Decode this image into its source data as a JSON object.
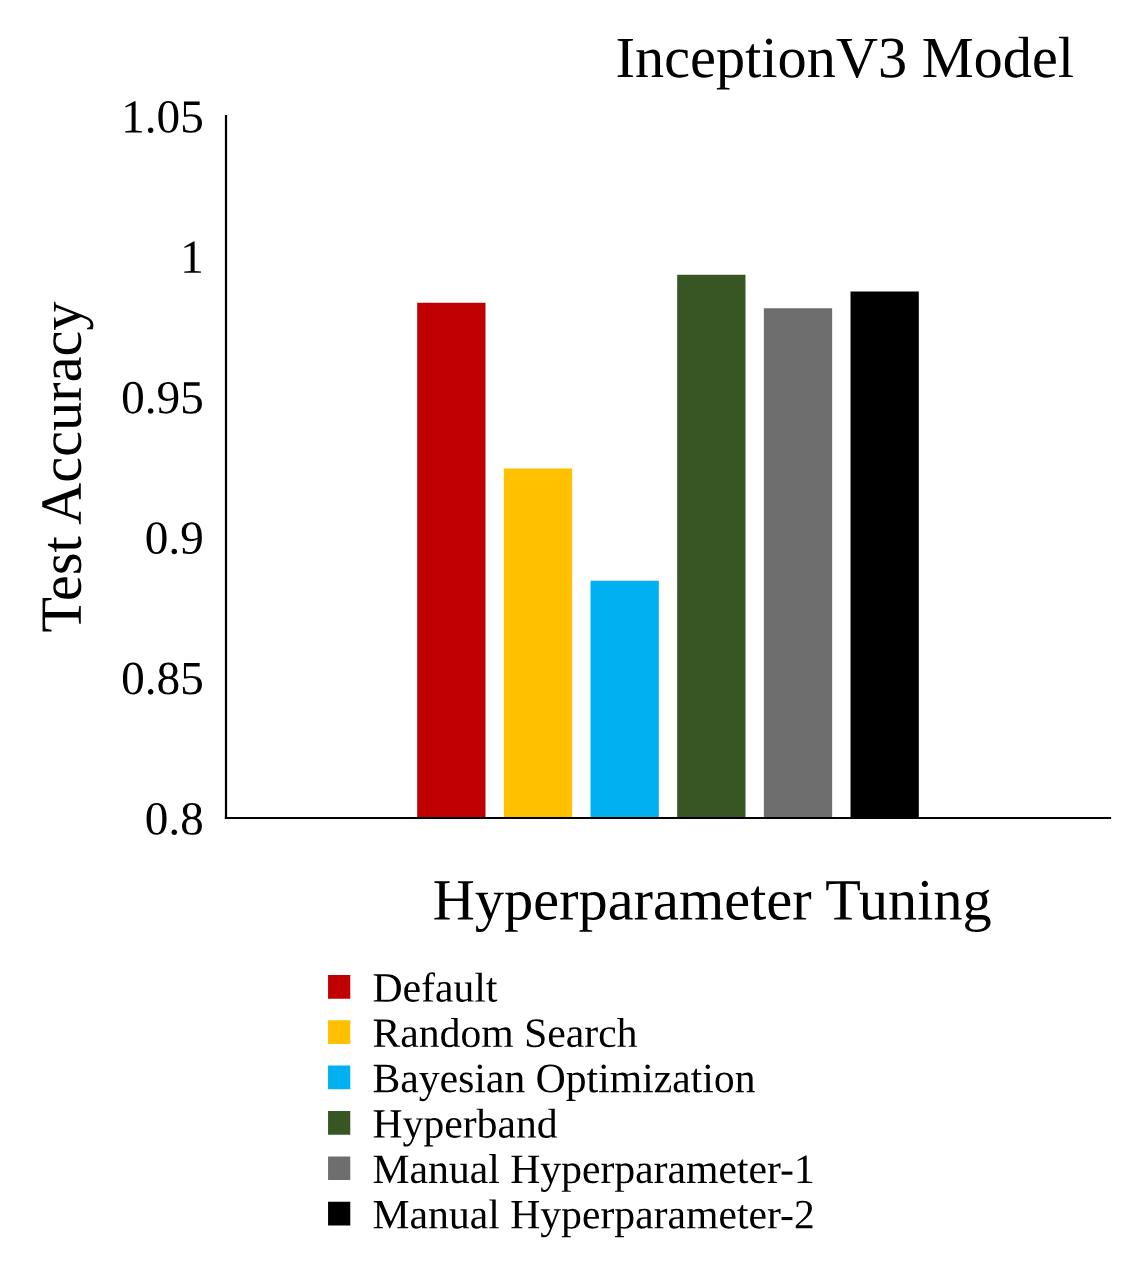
{
  "chart_data": {
    "type": "bar",
    "title": "InceptionV3 Model",
    "xlabel": "Hyperparameter Tuning",
    "ylabel": "Test Accuracy",
    "categories": [
      null
    ],
    "series": [
      {
        "name": "Default",
        "color": "#c00000",
        "values": [
          0.984
        ]
      },
      {
        "name": "Random Search",
        "color": "#ffc000",
        "values": [
          0.925
        ]
      },
      {
        "name": "Bayesian Optimization",
        "color": "#00b0f0",
        "values": [
          0.885
        ]
      },
      {
        "name": "Hyperband",
        "color": "#375623",
        "values": [
          0.994
        ]
      },
      {
        "name": "Manual Hyperparameter-1",
        "color": "#6e6e6e",
        "values": [
          0.982
        ]
      },
      {
        "name": "Manual Hyperparameter-2",
        "color": "#000000",
        "values": [
          0.988
        ]
      }
    ],
    "ylim": [
      0.8,
      1.05
    ],
    "yticks": [
      {
        "value": 0.8,
        "label": "0.8"
      },
      {
        "value": 0.85,
        "label": "0.85"
      },
      {
        "value": 0.9,
        "label": "0.9"
      },
      {
        "value": 0.95,
        "label": "0.95"
      },
      {
        "value": 1,
        "label": "1"
      },
      {
        "value": 1.05,
        "label": "1.05"
      }
    ],
    "grid": false,
    "legend": "bottom",
    "tick_labels": "y"
  }
}
